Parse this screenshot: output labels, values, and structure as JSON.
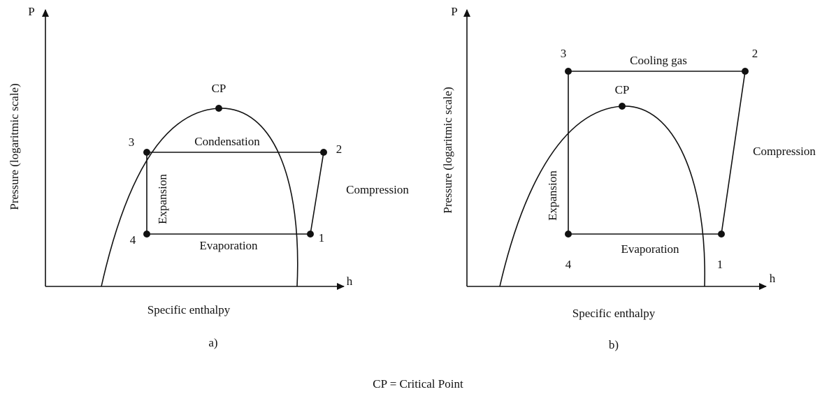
{
  "panels": [
    {
      "y_axis_symbol": "P",
      "x_axis_symbol": "h",
      "y_axis_label": "Pressure (logaritmic scale)",
      "x_axis_label": "Specific enthalpy",
      "caption": "a)",
      "critical_point": "CP",
      "points": [
        "1",
        "2",
        "3",
        "4"
      ],
      "processes": {
        "top": "Condensation",
        "bottom": "Evaporation",
        "right": "Compression",
        "left": "Expansion"
      }
    },
    {
      "y_axis_symbol": "P",
      "x_axis_symbol": "h",
      "y_axis_label": "Pressure (logaritmic scale)",
      "x_axis_label": "Specific enthalpy",
      "caption": "b)",
      "critical_point": "CP",
      "points": [
        "1",
        "2",
        "3",
        "4"
      ],
      "processes": {
        "top": "Cooling gas",
        "bottom": "Evaporation",
        "right": "Compression",
        "left": "Expansion"
      }
    }
  ],
  "footer": "CP = Critical Point"
}
